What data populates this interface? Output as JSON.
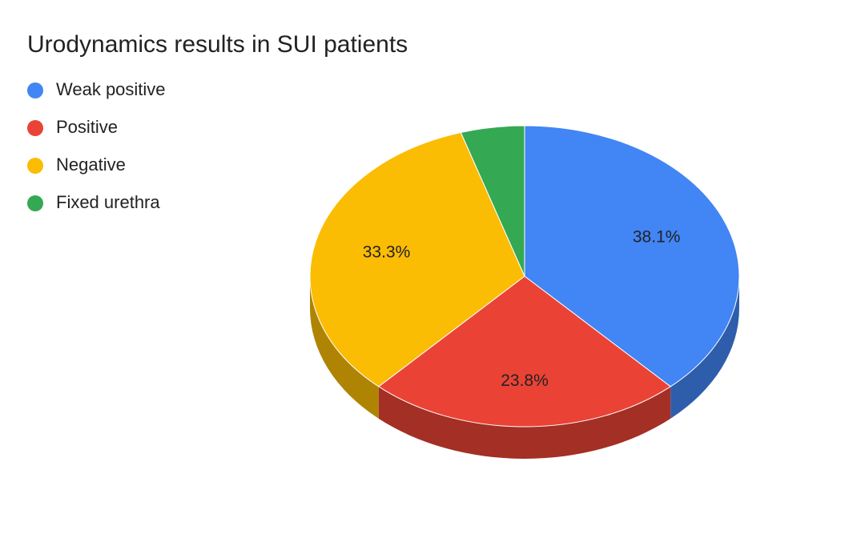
{
  "chart_data": {
    "type": "pie",
    "title": "Urodynamics results in SUI patients",
    "categories": [
      "Weak positive",
      "Positive",
      "Negative",
      "Fixed urethra"
    ],
    "values": [
      38.1,
      23.8,
      33.3,
      4.8
    ],
    "value_labels": [
      "38.1%",
      "23.8%",
      "33.3%",
      null
    ],
    "colors": [
      "#4285f4",
      "#ea4335",
      "#fbbc04",
      "#34a853"
    ],
    "three_d": true,
    "legend": "left"
  }
}
